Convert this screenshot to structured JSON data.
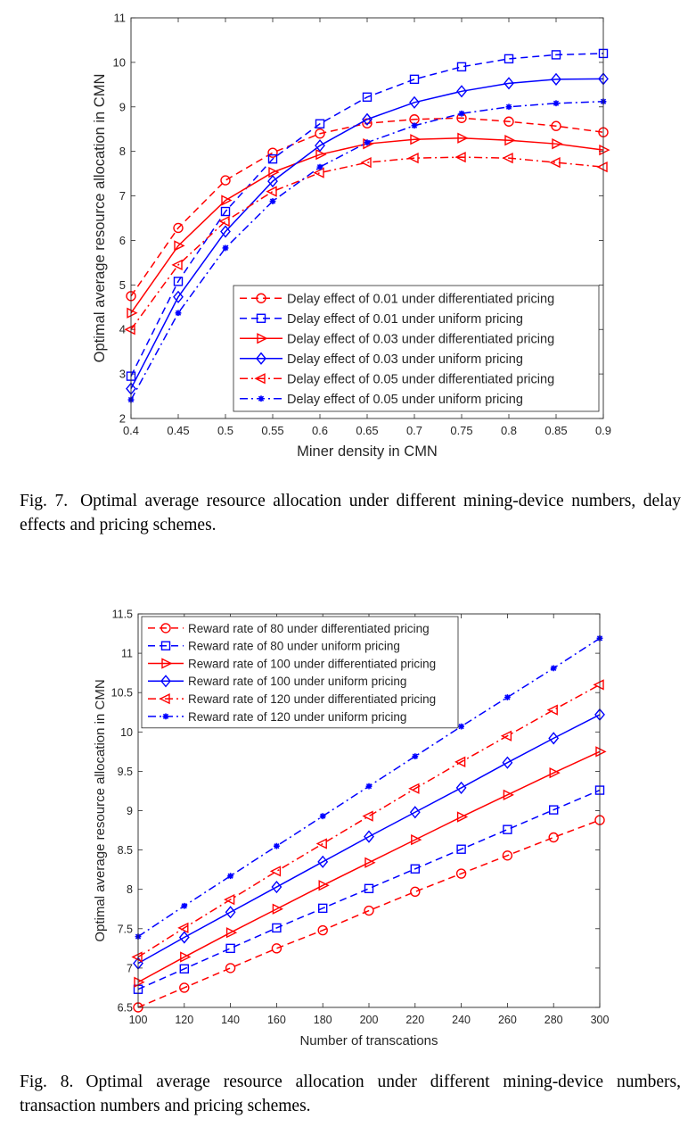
{
  "captions": [
    {
      "label": "Fig. 7.",
      "text": "Optimal average resource allocation under different mining-device numbers, delay effects and pricing schemes."
    },
    {
      "label": "Fig. 8.",
      "text": "Optimal average resource allocation under different mining-device numbers, transaction numbers and pricing schemes."
    }
  ],
  "chart_data": [
    {
      "type": "line",
      "title": "",
      "xlabel": "Miner density in CMN",
      "ylabel": "Optimal average resource allocation in CMN",
      "x": [
        0.4,
        0.45,
        0.5,
        0.55,
        0.6,
        0.65,
        0.7,
        0.75,
        0.8,
        0.85,
        0.9
      ],
      "xlim": [
        0.4,
        0.9
      ],
      "ylim": [
        2,
        11
      ],
      "xticks": [
        0.4,
        0.45,
        0.5,
        0.55,
        0.6,
        0.65,
        0.7,
        0.75,
        0.8,
        0.85,
        0.9
      ],
      "yticks": [
        2,
        3,
        4,
        5,
        6,
        7,
        8,
        9,
        10,
        11
      ],
      "grid": false,
      "legend_position": "bottom-right",
      "series": [
        {
          "name": "Delay effect of 0.01 under differentiated pricing",
          "color": "#ff0000",
          "dash": "dashed",
          "marker": "circle",
          "values": [
            4.75,
            6.28,
            7.35,
            7.97,
            8.4,
            8.63,
            8.72,
            8.75,
            8.67,
            8.57,
            8.43
          ]
        },
        {
          "name": "Delay effect of 0.01 under uniform pricing",
          "color": "#0000ff",
          "dash": "dashed",
          "marker": "square",
          "values": [
            2.95,
            5.08,
            6.65,
            7.83,
            8.62,
            9.22,
            9.62,
            9.9,
            10.08,
            10.17,
            10.2
          ]
        },
        {
          "name": "Delay effect of 0.03 under differentiated pricing",
          "color": "#ff0000",
          "dash": "solid",
          "marker": "triangle-right",
          "values": [
            4.37,
            5.88,
            6.9,
            7.53,
            7.93,
            8.17,
            8.27,
            8.3,
            8.25,
            8.17,
            8.03
          ]
        },
        {
          "name": "Delay effect of 0.03 under uniform pricing",
          "color": "#0000ff",
          "dash": "solid",
          "marker": "diamond",
          "values": [
            2.67,
            4.73,
            6.2,
            7.33,
            8.13,
            8.72,
            9.1,
            9.35,
            9.53,
            9.62,
            9.63
          ]
        },
        {
          "name": "Delay effect of 0.05 under differentiated pricing",
          "color": "#ff0000",
          "dash": "dashdot",
          "marker": "triangle-left",
          "values": [
            4.0,
            5.45,
            6.43,
            7.1,
            7.52,
            7.75,
            7.85,
            7.87,
            7.85,
            7.75,
            7.65
          ]
        },
        {
          "name": "Delay effect of 0.05 under uniform pricing",
          "color": "#0000ff",
          "dash": "dashdot",
          "marker": "asterisk",
          "values": [
            2.42,
            4.37,
            5.83,
            6.88,
            7.65,
            8.2,
            8.58,
            8.85,
            9.0,
            9.08,
            9.12
          ]
        }
      ]
    },
    {
      "type": "line",
      "title": "",
      "xlabel": "Number of transcations",
      "ylabel": "Optimal average resource allocation in CMN",
      "x": [
        100,
        120,
        140,
        160,
        180,
        200,
        220,
        240,
        260,
        280,
        300
      ],
      "xlim": [
        100,
        300
      ],
      "ylim": [
        6.5,
        11.5
      ],
      "xticks": [
        100,
        120,
        140,
        160,
        180,
        200,
        220,
        240,
        260,
        280,
        300
      ],
      "yticks": [
        6.5,
        7,
        7.5,
        8,
        8.5,
        9,
        9.5,
        10,
        10.5,
        11,
        11.5
      ],
      "grid": false,
      "legend_position": "top-left",
      "series": [
        {
          "name": "Reward rate of 80 under differentiated pricing",
          "color": "#ff0000",
          "dash": "dashed",
          "marker": "circle",
          "values": [
            6.5,
            6.75,
            7.0,
            7.25,
            7.48,
            7.73,
            7.97,
            8.2,
            8.43,
            8.66,
            8.88
          ]
        },
        {
          "name": "Reward rate of 80 under uniform pricing",
          "color": "#0000ff",
          "dash": "dashed",
          "marker": "square",
          "values": [
            6.73,
            6.99,
            7.25,
            7.51,
            7.76,
            8.01,
            8.26,
            8.51,
            8.76,
            9.01,
            9.26
          ]
        },
        {
          "name": "Reward rate of 100 under differentiated pricing",
          "color": "#ff0000",
          "dash": "solid",
          "marker": "triangle-right",
          "values": [
            6.82,
            7.14,
            7.45,
            7.75,
            8.05,
            8.34,
            8.63,
            8.92,
            9.2,
            9.48,
            9.75
          ]
        },
        {
          "name": "Reward rate of 100 under uniform pricing",
          "color": "#0000ff",
          "dash": "solid",
          "marker": "diamond",
          "values": [
            7.06,
            7.39,
            7.71,
            8.03,
            8.35,
            8.67,
            8.98,
            9.29,
            9.61,
            9.92,
            10.22
          ]
        },
        {
          "name": "Reward rate of 120 under differentiated pricing",
          "color": "#ff0000",
          "dash": "dashdot",
          "marker": "triangle-left",
          "values": [
            7.14,
            7.51,
            7.87,
            8.23,
            8.58,
            8.93,
            9.28,
            9.62,
            9.95,
            10.28,
            10.6
          ]
        },
        {
          "name": "Reward rate of 120 under uniform pricing",
          "color": "#0000ff",
          "dash": "dashdot",
          "marker": "asterisk",
          "values": [
            7.4,
            7.79,
            8.17,
            8.55,
            8.93,
            9.31,
            9.69,
            10.07,
            10.44,
            10.81,
            11.19
          ]
        }
      ]
    }
  ]
}
